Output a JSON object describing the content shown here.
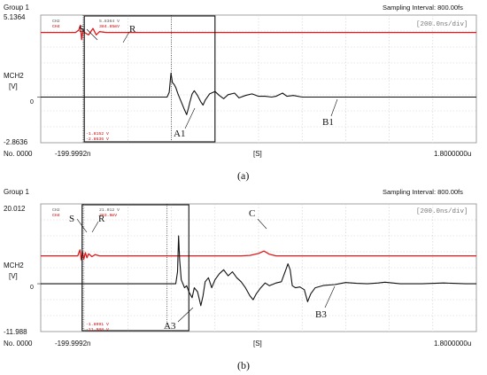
{
  "chart_data": [
    {
      "type": "line",
      "panel_label": "(a)",
      "header": {
        "group": "Group 1",
        "sampling": "Sampling Interval: 800.00fs"
      },
      "y_top": "5.1364",
      "y_bottom": "-2.8636",
      "time_div": "[200.0ns/div]",
      "channel": "MCH2",
      "unit": "[V]",
      "zero": "0",
      "x_unit": "[S]",
      "x_start": "-199.9992n",
      "x_end": "1.8000000u",
      "record": "No. 0000",
      "cursor_top": [
        "CH2",
        "CH4",
        "5.8364 V",
        "384.85mV"
      ],
      "cursor_bottom": [
        "-1.8152 V",
        "-2.8636 V"
      ],
      "annotations": [
        "S",
        "R",
        "A1",
        "B1"
      ],
      "series": [
        {
          "color": "#e0191b",
          "points": [
            [
              -200,
              4.05
            ],
            [
              -150,
              4.05
            ],
            [
              -100,
              4.05
            ],
            [
              -40,
              4.05
            ],
            [
              -25,
              4.2
            ],
            [
              -18,
              4.5
            ],
            [
              -12,
              3.6
            ],
            [
              -6,
              4.2
            ],
            [
              0,
              4.05
            ],
            [
              20,
              3.9
            ],
            [
              40,
              4.3
            ],
            [
              55,
              3.9
            ],
            [
              70,
              4.1
            ],
            [
              100,
              4.05
            ],
            [
              200,
              4.05
            ],
            [
              400,
              4.05
            ],
            [
              600,
              4.05
            ],
            [
              800,
              4.05
            ],
            [
              1000,
              4.05
            ],
            [
              1200,
              4.05
            ],
            [
              1400,
              4.05
            ],
            [
              1600,
              4.05
            ],
            [
              1800,
              4.05
            ]
          ]
        },
        {
          "color": "#111111",
          "points": [
            [
              -200,
              0.0
            ],
            [
              0,
              0.0
            ],
            [
              200,
              0.0
            ],
            [
              380,
              0.0
            ],
            [
              390,
              0.3
            ],
            [
              398,
              1.5
            ],
            [
              405,
              0.9
            ],
            [
              412,
              0.8
            ],
            [
              420,
              0.6
            ],
            [
              430,
              0.2
            ],
            [
              445,
              -0.3
            ],
            [
              460,
              -0.8
            ],
            [
              470,
              -1.1
            ],
            [
              478,
              -0.7
            ],
            [
              485,
              -0.3
            ],
            [
              495,
              0.2
            ],
            [
              505,
              0.4
            ],
            [
              520,
              0.1
            ],
            [
              535,
              -0.3
            ],
            [
              545,
              -0.5
            ],
            [
              555,
              -0.2
            ],
            [
              575,
              0.2
            ],
            [
              600,
              0.35
            ],
            [
              620,
              0.1
            ],
            [
              640,
              -0.1
            ],
            [
              660,
              0.15
            ],
            [
              690,
              0.25
            ],
            [
              710,
              -0.05
            ],
            [
              740,
              0.1
            ],
            [
              770,
              0.2
            ],
            [
              800,
              0.05
            ],
            [
              830,
              0.05
            ],
            [
              860,
              0.0
            ],
            [
              880,
              0.05
            ],
            [
              910,
              0.25
            ],
            [
              930,
              0.05
            ],
            [
              960,
              0.1
            ],
            [
              1000,
              0.0
            ],
            [
              1100,
              0.0
            ],
            [
              1200,
              0.0
            ],
            [
              1400,
              0.0
            ],
            [
              1600,
              0.0
            ],
            [
              1800,
              0.0
            ]
          ]
        }
      ]
    },
    {
      "type": "line",
      "panel_label": "(b)",
      "header": {
        "group": "Group 1",
        "sampling": "Sampling Interval: 800.00fs"
      },
      "y_top": "20.012",
      "y_bottom": "-11.988",
      "time_div": "[200.0ns/div]",
      "channel": "MCH2",
      "unit": "[V]",
      "zero": "0",
      "x_unit": "[S]",
      "x_start": "-199.9992n",
      "x_end": "1.8000000u",
      "record": "No. 0000",
      "cursor_top": [
        "CH2",
        "CH4",
        "21.012 V",
        "383.9mV"
      ],
      "cursor_bottom": [
        "-1.8091 V",
        "-11.988 V"
      ],
      "annotations": [
        "S",
        "R",
        "C",
        "A3",
        "B3"
      ],
      "series": [
        {
          "color": "#e0191b",
          "points": [
            [
              -200,
              7.0
            ],
            [
              -100,
              7.0
            ],
            [
              -30,
              7.0
            ],
            [
              -20,
              8.5
            ],
            [
              -14,
              6.0
            ],
            [
              -8,
              8.0
            ],
            [
              -2,
              6.2
            ],
            [
              5,
              7.8
            ],
            [
              12,
              6.5
            ],
            [
              20,
              7.5
            ],
            [
              35,
              6.8
            ],
            [
              50,
              7.3
            ],
            [
              70,
              7.0
            ],
            [
              200,
              7.0
            ],
            [
              400,
              7.0
            ],
            [
              600,
              7.0
            ],
            [
              720,
              7.0
            ],
            [
              760,
              7.1
            ],
            [
              800,
              7.6
            ],
            [
              825,
              8.2
            ],
            [
              850,
              7.4
            ],
            [
              880,
              7.0
            ],
            [
              1000,
              7.0
            ],
            [
              1200,
              7.0
            ],
            [
              1400,
              7.0
            ],
            [
              1600,
              7.0
            ],
            [
              1800,
              7.0
            ]
          ]
        },
        {
          "color": "#111111",
          "points": [
            [
              -200,
              0.0
            ],
            [
              0,
              0.0
            ],
            [
              200,
              0.0
            ],
            [
              400,
              0.0
            ],
            [
              420,
              0.0
            ],
            [
              428,
              3.0
            ],
            [
              433,
              12.0
            ],
            [
              438,
              6.0
            ],
            [
              445,
              1.0
            ],
            [
              460,
              -1.0
            ],
            [
              470,
              -0.5
            ],
            [
              480,
              -2.0
            ],
            [
              495,
              -3.5
            ],
            [
              505,
              -1.0
            ],
            [
              520,
              -2.0
            ],
            [
              535,
              -5.5
            ],
            [
              545,
              -3.0
            ],
            [
              555,
              0.5
            ],
            [
              570,
              1.5
            ],
            [
              585,
              -1.0
            ],
            [
              600,
              1.0
            ],
            [
              620,
              2.5
            ],
            [
              640,
              3.5
            ],
            [
              660,
              2.0
            ],
            [
              680,
              3.0
            ],
            [
              700,
              1.5
            ],
            [
              720,
              0.5
            ],
            [
              740,
              -1.0
            ],
            [
              760,
              -3.0
            ],
            [
              775,
              -4.0
            ],
            [
              790,
              -2.5
            ],
            [
              810,
              -1.0
            ],
            [
              830,
              0.2
            ],
            [
              850,
              -0.5
            ],
            [
              880,
              0.2
            ],
            [
              905,
              0.5
            ],
            [
              925,
              3.5
            ],
            [
              935,
              5.0
            ],
            [
              945,
              3.5
            ],
            [
              955,
              -0.5
            ],
            [
              970,
              -1.0
            ],
            [
              990,
              -0.8
            ],
            [
              1010,
              -1.5
            ],
            [
              1025,
              -4.5
            ],
            [
              1040,
              -2.5
            ],
            [
              1060,
              -1.0
            ],
            [
              1100,
              -0.4
            ],
            [
              1150,
              -0.2
            ],
            [
              1200,
              0.3
            ],
            [
              1250,
              0.1
            ],
            [
              1300,
              0.0
            ],
            [
              1350,
              0.2
            ],
            [
              1380,
              0.4
            ],
            [
              1450,
              0.0
            ],
            [
              1550,
              0.0
            ],
            [
              1650,
              0.2
            ],
            [
              1750,
              0.0
            ],
            [
              1800,
              0.0
            ]
          ]
        }
      ]
    }
  ],
  "xlim": [
    -200,
    1800
  ],
  "panels_ylim": [
    [
      -2.8636,
      5.1364
    ],
    [
      -11.988,
      20.012
    ]
  ]
}
